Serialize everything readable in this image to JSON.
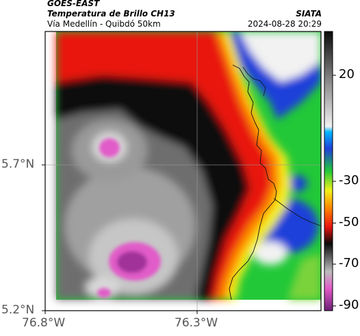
{
  "header": {
    "satellite": "GOES-EAST",
    "product": "Temperatura de Brillo CH13",
    "route": "Vía Medellín - Quibdó 50km",
    "org": "SIATA",
    "datetime": "2024-08-28 20:29"
  },
  "axes": {
    "lat_labels": [
      "5.7°N",
      "5.2°N"
    ],
    "lon_labels": [
      "76.8°W",
      "76.3°W"
    ]
  },
  "colorbar": {
    "tick_labels": [
      "20",
      "-30",
      "-50",
      "-70",
      "-90"
    ],
    "tick_values": [
      20,
      -30,
      -50,
      -70,
      -90
    ],
    "range": [
      -95,
      35
    ]
  },
  "colors": {
    "cold_magenta": "#e15bc8",
    "deep_black": "#0a0a0a",
    "warm_red": "#e8140f",
    "green": "#22c838",
    "blue": "#1f3fd9",
    "white_cloud": "#f2f2f2"
  }
}
